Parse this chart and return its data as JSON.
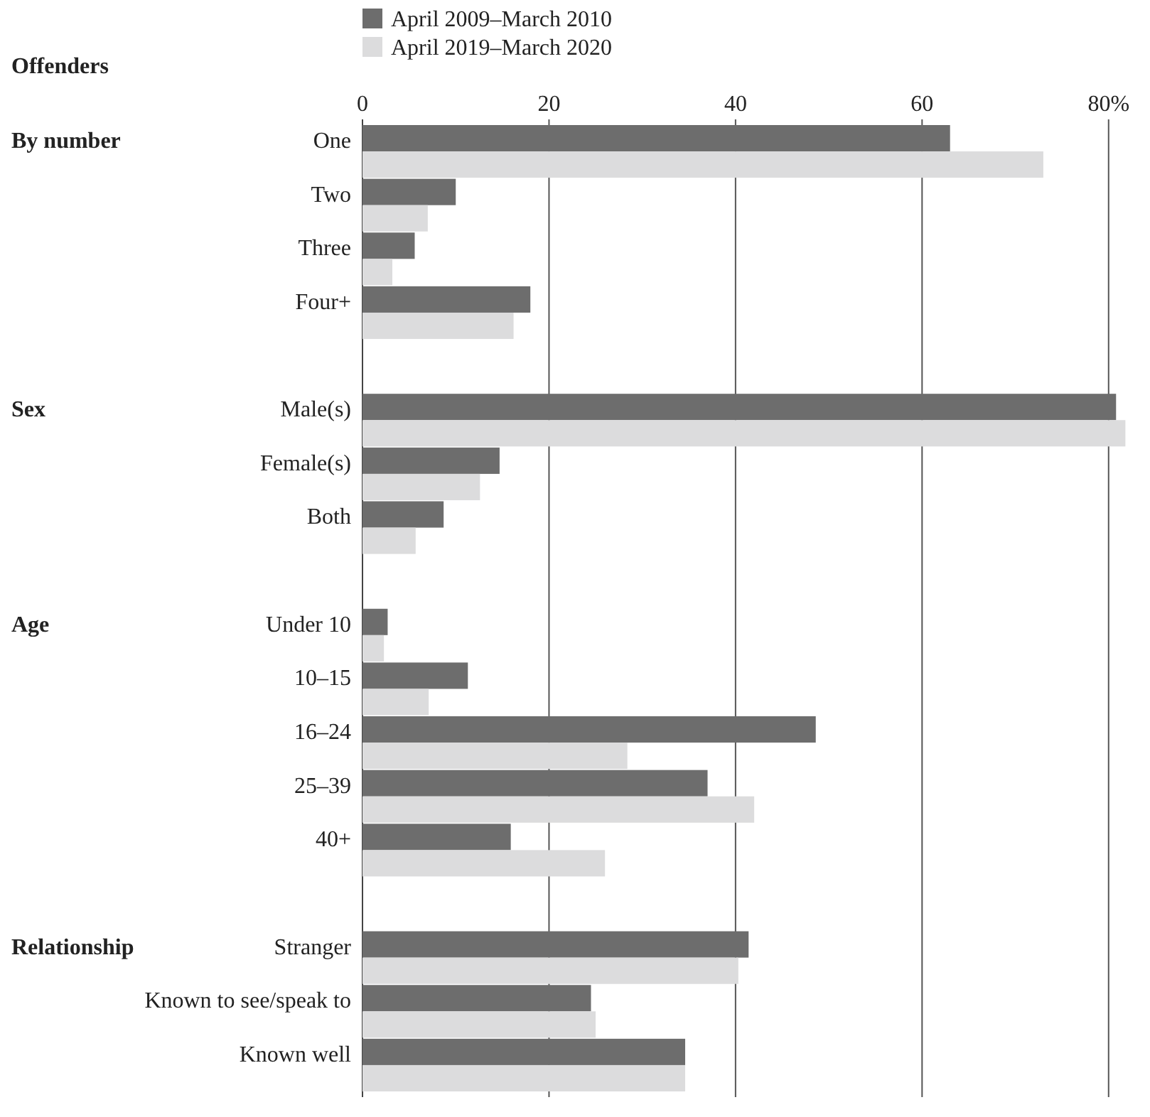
{
  "chart_data": {
    "type": "bar",
    "orientation": "horizontal",
    "categories": [
      "One",
      "Two",
      "Three",
      "Four+",
      null,
      "Male(s)",
      "Female(s)",
      "Both",
      null,
      "Under 10",
      "10–15",
      "16–24",
      "25–39",
      "40+",
      null,
      "Stranger",
      "Known to see/speak to",
      "Known well"
    ],
    "series": [
      {
        "name": "April 2009–March 2010",
        "color": "#6d6d6d",
        "values": [
          63,
          10,
          5.6,
          18,
          null,
          80.8,
          14.7,
          8.7,
          null,
          2.7,
          11.3,
          48.6,
          37,
          15.9,
          null,
          41.4,
          24.5,
          34.6
        ]
      },
      {
        "name": "April 2019–March 2020",
        "color": "#dcdcdd",
        "values": [
          73,
          7,
          3.2,
          16.2,
          null,
          81.8,
          12.6,
          5.7,
          null,
          2.3,
          7.1,
          28.4,
          42,
          26,
          null,
          40.3,
          25,
          34.6
        ]
      }
    ],
    "annotations": [
      "Offenders",
      "By number",
      "Sex",
      "Age",
      "Relationship"
    ],
    "xlim": [
      0,
      82
    ],
    "xticks": [
      0,
      20,
      40,
      60,
      {
        "value": 80,
        "label": "80%"
      }
    ],
    "grid": "x",
    "legend": "top left"
  }
}
